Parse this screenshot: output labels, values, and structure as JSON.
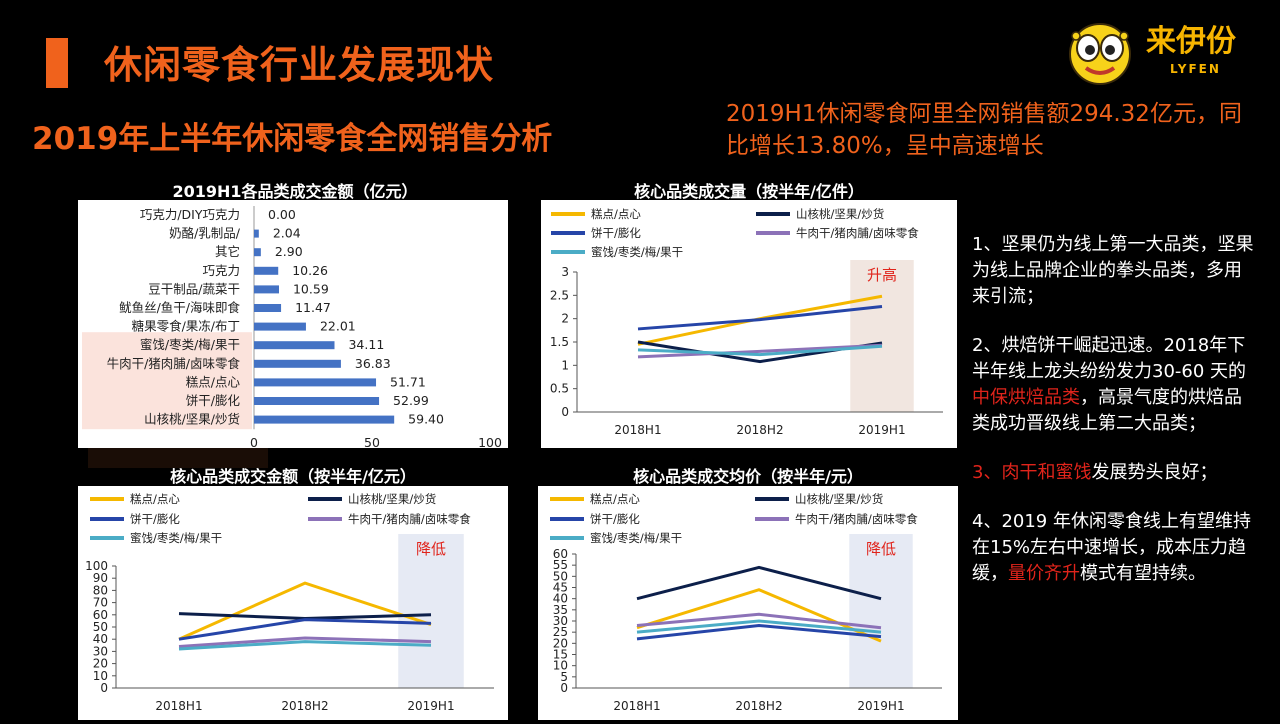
{
  "header": {
    "title": "休闲零食行业发展现状",
    "subtitle": "2019年上半年休闲零食全网销售分析",
    "summary": "2019H1休闲零食阿里全网销售额294.32亿元，同比增长13.80%，呈中高速增长"
  },
  "logo": {
    "name": "来伊份",
    "sub": "LYFEN"
  },
  "colors": {
    "accent": "#f0621c",
    "bar": "#4472c4",
    "highlight_red": "#e0241b"
  },
  "chart_data": [
    {
      "type": "bar",
      "title": "2019H1各品类成交金额（亿元）",
      "categories": [
        "巧克力/DIY巧克力",
        "奶酪/乳制品/",
        "其它",
        "巧克力",
        "豆干制品/蔬菜干",
        "鱿鱼丝/鱼干/海味即食",
        "糖果零食/果冻/布丁",
        "蜜饯/枣类/梅/果干",
        "牛肉干/猪肉脯/卤味零食",
        "糕点/点心",
        "饼干/膨化",
        "山核桃/坚果/炒货"
      ],
      "values": [
        0.0,
        2.04,
        2.9,
        10.26,
        10.59,
        11.47,
        22.01,
        34.11,
        36.83,
        51.71,
        52.99,
        59.4
      ],
      "value_labels": [
        "0.00",
        "2.04",
        "2.90",
        "10.26",
        "10.59",
        "11.47",
        "22.01",
        "34.11",
        "36.83",
        "51.71",
        "52.99",
        "59.40"
      ],
      "xlim": [
        0,
        100
      ],
      "xticks": [
        "0",
        "50",
        "100"
      ]
    },
    {
      "type": "line",
      "title": "核心品类成交量（按半年/亿件）",
      "annotation": "升高",
      "x": [
        "2018H1",
        "2018H2",
        "2019H1"
      ],
      "ylim": [
        0,
        3
      ],
      "yticks": [
        "0",
        "0.5",
        "1",
        "1.5",
        "2",
        "2.5",
        "3"
      ],
      "series": [
        {
          "name": "糕点/点心",
          "color": "#f5b800",
          "values": [
            1.45,
            2.0,
            2.48
          ]
        },
        {
          "name": "山核桃/坚果/炒货",
          "color": "#0c1f4a",
          "values": [
            1.5,
            1.08,
            1.48
          ]
        },
        {
          "name": "饼干/膨化",
          "color": "#2645a8",
          "values": [
            1.78,
            1.98,
            2.26
          ]
        },
        {
          "name": "牛肉干/猪肉脯/卤味零食",
          "color": "#8c72b8",
          "values": [
            1.18,
            1.3,
            1.43
          ]
        },
        {
          "name": "蜜饯/枣类/梅/果干",
          "color": "#4bacc6",
          "values": [
            1.33,
            1.23,
            1.41
          ]
        }
      ]
    },
    {
      "type": "line",
      "title": "核心品类成交金额（按半年/亿元）",
      "annotation": "降低",
      "x": [
        "2018H1",
        "2018H2",
        "2019H1"
      ],
      "ylim": [
        0,
        100
      ],
      "yticks": [
        "0",
        "10",
        "20",
        "30",
        "40",
        "50",
        "60",
        "70",
        "80",
        "90",
        "100"
      ],
      "series": [
        {
          "name": "糕点/点心",
          "color": "#f5b800",
          "values": [
            40,
            86,
            52
          ]
        },
        {
          "name": "山核桃/坚果/炒货",
          "color": "#0c1f4a",
          "values": [
            61,
            57,
            60
          ]
        },
        {
          "name": "饼干/膨化",
          "color": "#2645a8",
          "values": [
            40,
            56,
            53
          ]
        },
        {
          "name": "牛肉干/猪肉脯/卤味零食",
          "color": "#8c72b8",
          "values": [
            34,
            41,
            38
          ]
        },
        {
          "name": "蜜饯/枣类/梅/果干",
          "color": "#4bacc6",
          "values": [
            32,
            38,
            35
          ]
        }
      ]
    },
    {
      "type": "line",
      "title": "核心品类成交均价（按半年/元）",
      "annotation": "降低",
      "x": [
        "2018H1",
        "2018H2",
        "2019H1"
      ],
      "ylim": [
        0,
        60
      ],
      "yticks": [
        "0",
        "5",
        "10",
        "15",
        "20",
        "25",
        "30",
        "35",
        "40",
        "45",
        "50",
        "55",
        "60"
      ],
      "series": [
        {
          "name": "糕点/点心",
          "color": "#f5b800",
          "values": [
            27,
            44,
            21
          ]
        },
        {
          "name": "山核桃/坚果/炒货",
          "color": "#0c1f4a",
          "values": [
            40,
            54,
            40
          ]
        },
        {
          "name": "饼干/膨化",
          "color": "#2645a8",
          "values": [
            22,
            28,
            23
          ]
        },
        {
          "name": "牛肉干/猪肉脯/卤味零食",
          "color": "#8c72b8",
          "values": [
            28,
            33,
            27
          ]
        },
        {
          "name": "蜜饯/枣类/梅/果干",
          "color": "#4bacc6",
          "values": [
            25,
            30,
            25
          ]
        }
      ]
    }
  ],
  "notes": {
    "p1": "1、坚果仍为线上第一大品类，坚果为线上品牌企业的拳头品类，多用来引流；",
    "p2a": "2、烘焙饼干崛起迅速。2018年下半年线上龙头纷纷发力30-60 天的",
    "p2red": "中保烘焙品类",
    "p2b": "，高景气度的烘焙品类成功晋级线上第二大品类；",
    "p3red": "3、肉干和蜜饯",
    "p3b": "发展势头良好；",
    "p4a": "4、2019 年休闲零食线上有望维持在15%左右中速增长，成本压力趋缓，",
    "p4red": "量价齐升",
    "p4b": "模式有望持续。"
  }
}
